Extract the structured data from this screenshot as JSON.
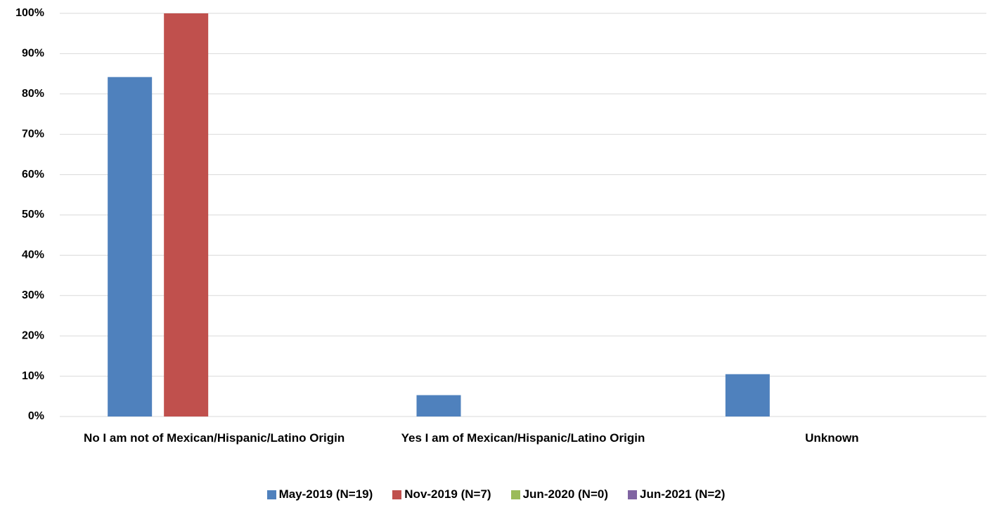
{
  "chart_data": {
    "type": "bar",
    "categories": [
      "No I am not of Mexican/Hispanic/Latino Origin",
      "Yes I am of Mexican/Hispanic/Latino Origin",
      "Unknown"
    ],
    "series": [
      {
        "name": "May-2019 (N=19)",
        "color": "#4f81bd",
        "values": [
          84.2,
          5.3,
          10.5
        ]
      },
      {
        "name": "Nov-2019 (N=7)",
        "color": "#c0504d",
        "values": [
          100,
          0,
          0
        ]
      },
      {
        "name": "Jun-2020 (N=0)",
        "color": "#9bbb59",
        "values": [
          0,
          0,
          0
        ]
      },
      {
        "name": "Jun-2021 (N=2)",
        "color": "#8064a2",
        "values": [
          0,
          0,
          0
        ]
      }
    ],
    "ylim": [
      0,
      100
    ],
    "yticks": [
      {
        "value": 0,
        "label": "0%"
      },
      {
        "value": 10,
        "label": "10%"
      },
      {
        "value": 20,
        "label": "20%"
      },
      {
        "value": 30,
        "label": "30%"
      },
      {
        "value": 40,
        "label": "40%"
      },
      {
        "value": 50,
        "label": "50%"
      },
      {
        "value": 60,
        "label": "60%"
      },
      {
        "value": 70,
        "label": "70%"
      },
      {
        "value": 80,
        "label": "80%"
      },
      {
        "value": 90,
        "label": "90%"
      },
      {
        "value": 100,
        "label": "100%"
      }
    ],
    "grid": true,
    "legend": "bottom"
  }
}
